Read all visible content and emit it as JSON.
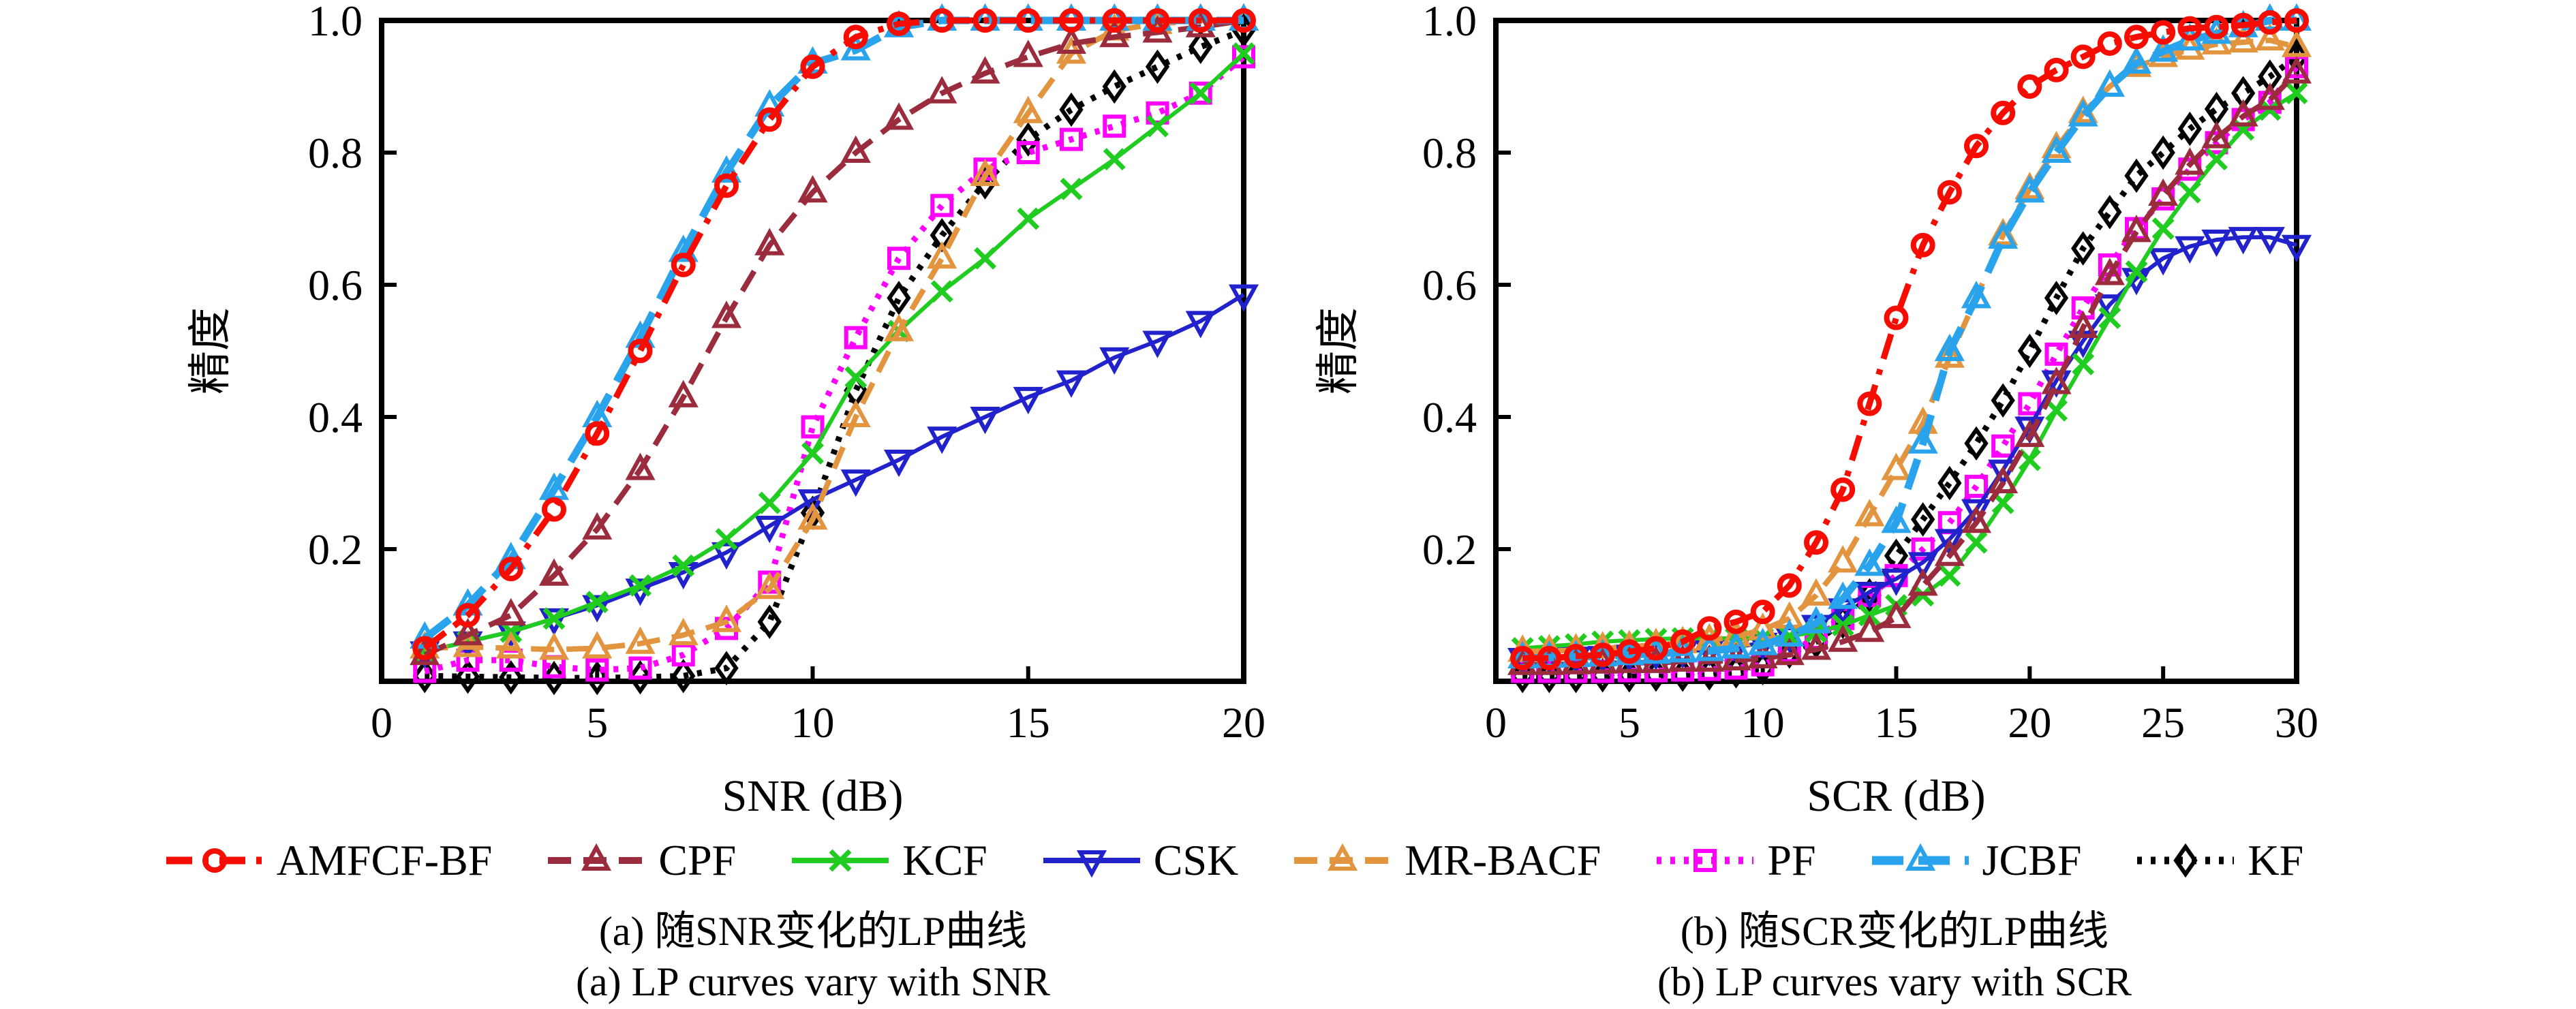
{
  "figure": {
    "background": "#ffffff",
    "captions": {
      "a_zh": "(a) 随SNR变化的LP曲线",
      "a_en": "(a) LP curves vary with SNR",
      "b_zh": "(b) 随SCR变化的LP曲线",
      "b_en": "(b) LP curves vary with SCR"
    }
  },
  "chart_data": [
    {
      "type": "line",
      "title": "(a)",
      "xlabel": "SNR (dB)",
      "ylabel": "精度",
      "xlim": [
        0,
        20
      ],
      "ylim": [
        0,
        1.0
      ],
      "grid": false,
      "legend_position": "below-figure",
      "xticks": [
        0,
        5,
        10,
        15,
        20
      ],
      "xtick_labels": [
        "0",
        "5",
        "10",
        "15",
        "20"
      ],
      "yticks": [
        0.2,
        0.4,
        0.6,
        0.8,
        1.0
      ],
      "ytick_labels": [
        "0.2",
        "0.4",
        "0.6",
        "0.8",
        "1.0"
      ],
      "x": [
        1,
        2,
        3,
        4,
        5,
        6,
        7,
        8,
        9,
        10,
        11,
        12,
        13,
        14,
        15,
        16,
        17,
        18,
        19,
        20
      ],
      "series": [
        {
          "name": "AMFCF-BF",
          "color": "#f60c00",
          "dash": "dashdot",
          "marker": "circle",
          "values": [
            0.05,
            0.1,
            0.17,
            0.26,
            0.375,
            0.5,
            0.63,
            0.75,
            0.85,
            0.93,
            0.975,
            0.995,
            1,
            1,
            1,
            1,
            1,
            1,
            1,
            1
          ]
        },
        {
          "name": "CPF",
          "color": "#9b2c3d",
          "dash": "dashed",
          "marker": "triangle_up",
          "values": [
            0.04,
            0.07,
            0.1,
            0.16,
            0.23,
            0.32,
            0.43,
            0.55,
            0.66,
            0.74,
            0.8,
            0.85,
            0.89,
            0.92,
            0.945,
            0.965,
            0.975,
            0.982,
            0.99,
            1
          ]
        },
        {
          "name": "KCF",
          "color": "#21cc21",
          "dash": "solid",
          "marker": "x",
          "values": [
            0.045,
            0.06,
            0.075,
            0.095,
            0.12,
            0.145,
            0.175,
            0.215,
            0.27,
            0.345,
            0.46,
            0.53,
            0.59,
            0.64,
            0.7,
            0.745,
            0.79,
            0.84,
            0.89,
            0.95
          ]
        },
        {
          "name": "CSK",
          "color": "#2122cc",
          "dash": "solid",
          "marker": "triangle_down",
          "values": [
            0.045,
            0.06,
            0.075,
            0.095,
            0.115,
            0.14,
            0.165,
            0.195,
            0.235,
            0.275,
            0.305,
            0.335,
            0.37,
            0.4,
            0.43,
            0.455,
            0.49,
            0.515,
            0.545,
            0.585
          ]
        },
        {
          "name": "MR-BACF",
          "color": "#e2943e",
          "dash": "dashed",
          "marker": "triangle_up",
          "values": [
            0.05,
            0.052,
            0.05,
            0.048,
            0.05,
            0.057,
            0.07,
            0.09,
            0.14,
            0.245,
            0.4,
            0.53,
            0.64,
            0.765,
            0.86,
            0.95,
            0.985,
            0.995,
            1,
            1
          ]
        },
        {
          "name": "PF",
          "color": "#ff00ff",
          "dash": "dotted",
          "marker": "square",
          "values": [
            0.015,
            0.032,
            0.032,
            0.022,
            0.017,
            0.02,
            0.04,
            0.08,
            0.15,
            0.385,
            0.52,
            0.64,
            0.72,
            0.775,
            0.8,
            0.82,
            0.84,
            0.86,
            0.89,
            0.945
          ]
        },
        {
          "name": "JCBF",
          "color": "#29a3ec",
          "dash": "longdash",
          "marker": "triangle_up",
          "values": [
            0.065,
            0.115,
            0.185,
            0.29,
            0.4,
            0.52,
            0.65,
            0.77,
            0.87,
            0.935,
            0.955,
            0.99,
            1,
            1,
            1,
            1,
            1,
            1,
            1,
            1
          ]
        },
        {
          "name": "KF",
          "color": "#000000",
          "dash": "dotted",
          "marker": "diamond",
          "values": [
            0.008,
            0.007,
            0.006,
            0.005,
            0.005,
            0.006,
            0.008,
            0.02,
            0.09,
            0.255,
            0.44,
            0.58,
            0.675,
            0.755,
            0.82,
            0.865,
            0.9,
            0.93,
            0.96,
            0.985
          ]
        }
      ]
    },
    {
      "type": "line",
      "title": "(b)",
      "xlabel": "SCR (dB)",
      "ylabel": "精度",
      "xlim": [
        0,
        30
      ],
      "ylim": [
        0,
        1.0
      ],
      "grid": false,
      "legend_position": "below-figure",
      "xticks": [
        0,
        5,
        10,
        15,
        20,
        25,
        30
      ],
      "xtick_labels": [
        "0",
        "5",
        "10",
        "15",
        "20",
        "25",
        "30"
      ],
      "yticks": [
        0.2,
        0.4,
        0.6,
        0.8,
        1.0
      ],
      "ytick_labels": [
        "0.2",
        "0.4",
        "0.6",
        "0.8",
        "1.0"
      ],
      "x": [
        1,
        2,
        3,
        4,
        5,
        6,
        7,
        8,
        9,
        10,
        11,
        12,
        13,
        14,
        15,
        16,
        17,
        18,
        19,
        20,
        21,
        22,
        23,
        24,
        25,
        26,
        27,
        28,
        29,
        30
      ],
      "series": [
        {
          "name": "AMFCF-BF",
          "color": "#f60c00",
          "dash": "dashdot",
          "marker": "circle",
          "values": [
            0.035,
            0.035,
            0.038,
            0.04,
            0.045,
            0.05,
            0.06,
            0.08,
            0.09,
            0.105,
            0.145,
            0.21,
            0.29,
            0.42,
            0.55,
            0.66,
            0.74,
            0.81,
            0.86,
            0.9,
            0.925,
            0.945,
            0.965,
            0.975,
            0.982,
            0.988,
            0.99,
            0.993,
            0.997,
            1
          ]
        },
        {
          "name": "CPF",
          "color": "#9b2c3d",
          "dash": "dashed",
          "marker": "triangle_up",
          "values": [
            0.025,
            0.025,
            0.026,
            0.027,
            0.028,
            0.028,
            0.03,
            0.03,
            0.032,
            0.035,
            0.04,
            0.048,
            0.06,
            0.075,
            0.096,
            0.145,
            0.19,
            0.24,
            0.3,
            0.37,
            0.45,
            0.535,
            0.615,
            0.68,
            0.735,
            0.782,
            0.822,
            0.855,
            0.88,
            0.92
          ]
        },
        {
          "name": "KCF",
          "color": "#21cc21",
          "dash": "solid",
          "marker": "x",
          "values": [
            0.05,
            0.053,
            0.056,
            0.06,
            0.062,
            0.064,
            0.065,
            0.065,
            0.065,
            0.065,
            0.068,
            0.075,
            0.085,
            0.1,
            0.115,
            0.13,
            0.16,
            0.21,
            0.27,
            0.335,
            0.41,
            0.48,
            0.55,
            0.62,
            0.685,
            0.74,
            0.79,
            0.835,
            0.865,
            0.89
          ]
        },
        {
          "name": "CSK",
          "color": "#2122cc",
          "dash": "solid",
          "marker": "triangle_down",
          "values": [
            0.035,
            0.036,
            0.037,
            0.038,
            0.04,
            0.042,
            0.045,
            0.048,
            0.052,
            0.058,
            0.068,
            0.085,
            0.11,
            0.135,
            0.155,
            0.18,
            0.215,
            0.26,
            0.32,
            0.385,
            0.455,
            0.515,
            0.57,
            0.61,
            0.64,
            0.658,
            0.668,
            0.672,
            0.672,
            0.66
          ]
        },
        {
          "name": "MR-BACF",
          "color": "#e2943e",
          "dash": "dashed",
          "marker": "triangle_up",
          "values": [
            0.045,
            0.046,
            0.047,
            0.05,
            0.052,
            0.055,
            0.058,
            0.062,
            0.068,
            0.078,
            0.095,
            0.13,
            0.18,
            0.25,
            0.32,
            0.39,
            0.49,
            0.58,
            0.675,
            0.745,
            0.807,
            0.86,
            0.9,
            0.93,
            0.945,
            0.956,
            0.964,
            0.967,
            0.97,
            0.96
          ]
        },
        {
          "name": "PF",
          "color": "#ff00ff",
          "dash": "dotted",
          "marker": "square",
          "values": [
            0.015,
            0.015,
            0.015,
            0.015,
            0.016,
            0.016,
            0.017,
            0.018,
            0.02,
            0.025,
            0.045,
            0.065,
            0.095,
            0.13,
            0.16,
            0.2,
            0.24,
            0.295,
            0.356,
            0.42,
            0.495,
            0.565,
            0.63,
            0.685,
            0.73,
            0.775,
            0.815,
            0.85,
            0.876,
            0.93
          ]
        },
        {
          "name": "JCBF",
          "color": "#29a3ec",
          "dash": "longdash",
          "marker": "triangle_up",
          "values": [
            0.035,
            0.036,
            0.037,
            0.038,
            0.04,
            0.042,
            0.044,
            0.046,
            0.05,
            0.055,
            0.068,
            0.088,
            0.125,
            0.175,
            0.24,
            0.36,
            0.5,
            0.58,
            0.67,
            0.74,
            0.8,
            0.855,
            0.9,
            0.935,
            0.953,
            0.97,
            0.98,
            0.99,
            1,
            1
          ]
        },
        {
          "name": "KF",
          "color": "#000000",
          "dash": "dotted",
          "marker": "diamond",
          "values": [
            0.008,
            0.008,
            0.008,
            0.009,
            0.009,
            0.01,
            0.01,
            0.012,
            0.015,
            0.02,
            0.045,
            0.06,
            0.09,
            0.13,
            0.19,
            0.245,
            0.3,
            0.36,
            0.425,
            0.5,
            0.58,
            0.655,
            0.71,
            0.765,
            0.8,
            0.836,
            0.866,
            0.89,
            0.915,
            0.945
          ]
        }
      ]
    }
  ]
}
